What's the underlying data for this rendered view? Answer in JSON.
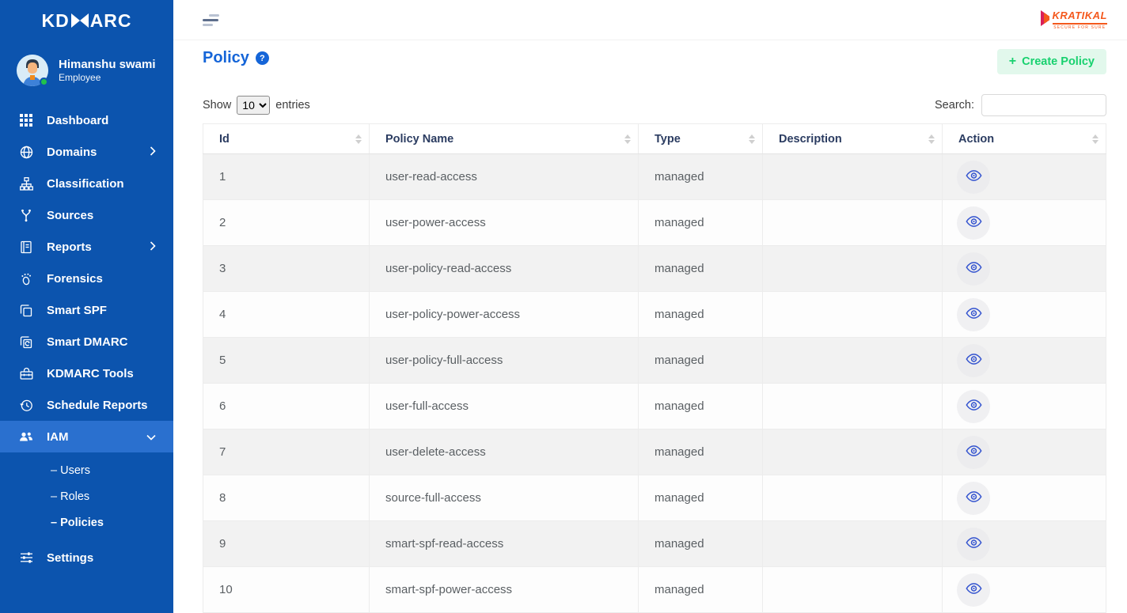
{
  "sidebar": {
    "logo_text_left": "KD",
    "logo_text_right": "ARC",
    "user": {
      "name": "Himanshu swami",
      "role": "Employee"
    },
    "items": [
      {
        "label": "Dashboard"
      },
      {
        "label": "Domains"
      },
      {
        "label": "Classification"
      },
      {
        "label": "Sources"
      },
      {
        "label": "Reports"
      },
      {
        "label": "Forensics"
      },
      {
        "label": "Smart SPF"
      },
      {
        "label": "Smart DMARC"
      },
      {
        "label": "KDMARC Tools"
      },
      {
        "label": "Schedule Reports"
      },
      {
        "label": "IAM"
      },
      {
        "label": "Settings"
      }
    ],
    "iam_children": [
      {
        "label": "– Users"
      },
      {
        "label": "– Roles"
      },
      {
        "label": "– Policies"
      }
    ]
  },
  "header": {
    "brand": "KRATIKAL",
    "brand_tagline": "SECURE FOR SURE"
  },
  "page": {
    "title": "Policy",
    "create_button": "Create Policy",
    "plus": "+",
    "help": "?",
    "show_label": "Show",
    "entries_label": "entries",
    "page_size": "10",
    "search_label": "Search:",
    "search_value": ""
  },
  "table": {
    "columns": [
      "Id",
      "Policy Name",
      "Type",
      "Description",
      "Action"
    ],
    "rows": [
      {
        "id": "1",
        "name": "user-read-access",
        "type": "managed",
        "description": ""
      },
      {
        "id": "2",
        "name": "user-power-access",
        "type": "managed",
        "description": ""
      },
      {
        "id": "3",
        "name": "user-policy-read-access",
        "type": "managed",
        "description": ""
      },
      {
        "id": "4",
        "name": "user-policy-power-access",
        "type": "managed",
        "description": ""
      },
      {
        "id": "5",
        "name": "user-policy-full-access",
        "type": "managed",
        "description": ""
      },
      {
        "id": "6",
        "name": "user-full-access",
        "type": "managed",
        "description": ""
      },
      {
        "id": "7",
        "name": "user-delete-access",
        "type": "managed",
        "description": ""
      },
      {
        "id": "8",
        "name": "source-full-access",
        "type": "managed",
        "description": ""
      },
      {
        "id": "9",
        "name": "smart-spf-read-access",
        "type": "managed",
        "description": ""
      },
      {
        "id": "10",
        "name": "smart-spf-power-access",
        "type": "managed",
        "description": ""
      }
    ]
  },
  "colors": {
    "sidebar_blue": "#0C54AE",
    "active_item_blue": "#2A70CF",
    "title_blue": "#1565d8",
    "button_green": "#18d16f",
    "button_green_bg": "#e2f8ec",
    "brand_orange": "#f4581c",
    "header_navy": "#2b3c61",
    "stripe_gray": "#f2f2f2",
    "eye_blue": "#3353cf"
  }
}
